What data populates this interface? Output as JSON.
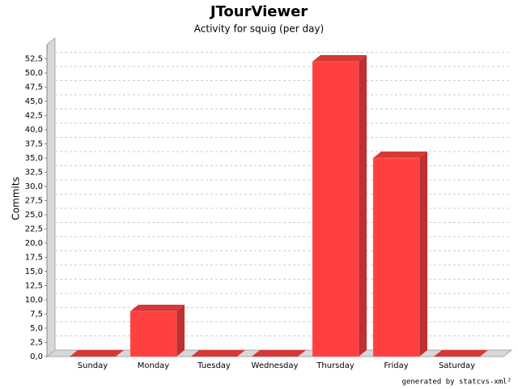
{
  "chart_data": {
    "type": "bar3d",
    "title": "JTourViewer",
    "subtitle": "Activity for squig (per day)",
    "y_label": "Commits",
    "footer": "generated by statcvs-xml²",
    "categories": [
      "Sunday",
      "Monday",
      "Tuesday",
      "Wednesday",
      "Thursday",
      "Friday",
      "Saturday"
    ],
    "values": [
      0,
      8,
      0,
      0,
      52,
      35,
      0
    ],
    "color": "#ff4040",
    "ylim": [
      0,
      55
    ],
    "yticks": [
      {
        "value": 0,
        "label": "0,0"
      },
      {
        "value": 2.5,
        "label": "2,5"
      },
      {
        "value": 5,
        "label": "5,0"
      },
      {
        "value": 7.5,
        "label": "7,5"
      },
      {
        "value": 10,
        "label": "10,0"
      },
      {
        "value": 12.5,
        "label": "12,5"
      },
      {
        "value": 15,
        "label": "15,0"
      },
      {
        "value": 17.5,
        "label": "17,5"
      },
      {
        "value": 20,
        "label": "20,0"
      },
      {
        "value": 22.5,
        "label": "22,5"
      },
      {
        "value": 25,
        "label": "25,0"
      },
      {
        "value": 27.5,
        "label": "27,5"
      },
      {
        "value": 30,
        "label": "30,0"
      },
      {
        "value": 32.5,
        "label": "32,5"
      },
      {
        "value": 35,
        "label": "35,0"
      },
      {
        "value": 37.5,
        "label": "37,5"
      },
      {
        "value": 40,
        "label": "40,0"
      },
      {
        "value": 42.5,
        "label": "42,5"
      },
      {
        "value": 45,
        "label": "45,0"
      },
      {
        "value": 47.5,
        "label": "47,5"
      },
      {
        "value": 50,
        "label": "50,0"
      },
      {
        "value": 52.5,
        "label": "52,5"
      }
    ],
    "grid": true
  }
}
